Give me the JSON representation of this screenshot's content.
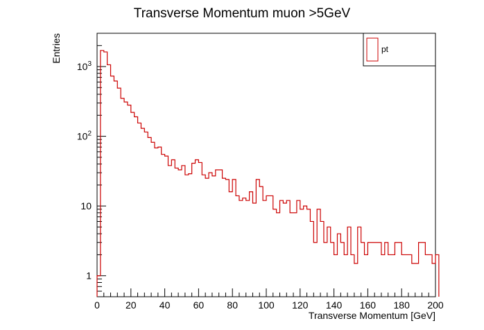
{
  "chart_data": {
    "type": "histogram",
    "title": "Transverse Momentum muon >5GeV",
    "xlabel": "Transverse Momentum [GeV]",
    "ylabel": "Entries",
    "xlim": [
      0,
      200
    ],
    "ylim": [
      0.5,
      3000
    ],
    "yscale": "log",
    "grid": false,
    "legend": {
      "position": "top-right",
      "entries": [
        "pt"
      ]
    },
    "x_ticks": [
      0,
      20,
      40,
      60,
      80,
      100,
      120,
      140,
      160,
      180,
      200
    ],
    "y_ticks": [
      {
        "value": 1,
        "label": "1",
        "exp": ""
      },
      {
        "value": 10,
        "label": "10",
        "exp": ""
      },
      {
        "value": 100,
        "label": "10",
        "exp": "2"
      },
      {
        "value": 1000,
        "label": "10",
        "exp": "3"
      }
    ],
    "bin_width": 2,
    "series": [
      {
        "name": "pt",
        "color": "#cc0000",
        "x_start": 0,
        "values": [
          1,
          1700,
          1620,
          1060,
          730,
          620,
          490,
          350,
          310,
          280,
          220,
          190,
          155,
          130,
          115,
          96,
          82,
          68,
          70,
          55,
          52,
          38,
          46,
          35,
          33,
          38,
          28,
          29,
          41,
          46,
          42,
          28,
          25,
          30,
          27,
          33,
          33,
          25,
          24,
          16,
          24,
          14,
          12,
          13,
          12,
          16,
          11,
          24,
          19,
          12,
          14,
          14,
          9,
          8,
          12,
          11,
          12,
          8,
          8,
          12,
          9,
          10,
          9,
          6,
          3,
          9,
          6,
          3,
          5,
          3,
          2,
          4,
          3,
          2,
          5,
          2,
          1.5,
          5,
          3,
          2,
          3,
          3,
          3,
          3,
          2,
          3,
          2,
          2,
          3,
          3,
          2,
          2,
          2,
          1.5,
          1.5,
          3,
          3,
          2,
          2,
          1.5,
          2
        ]
      }
    ]
  }
}
